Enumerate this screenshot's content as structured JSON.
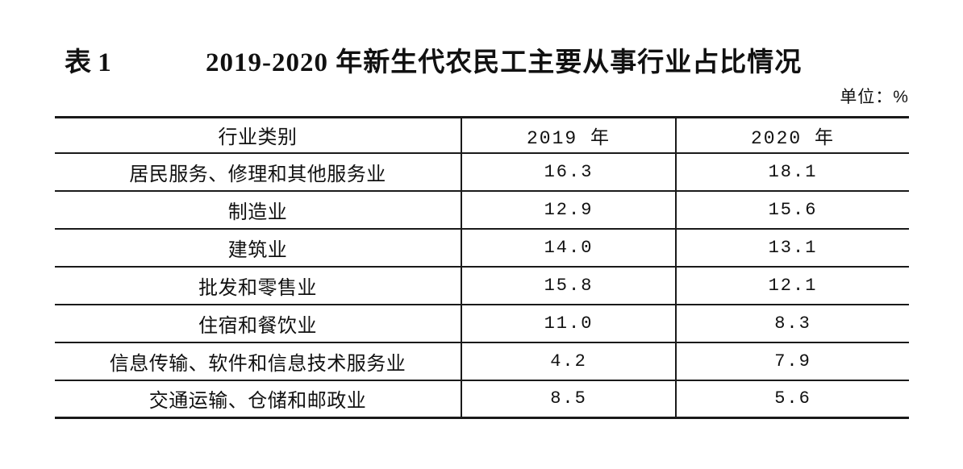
{
  "page": {
    "caption_label": "表 1",
    "title": "2019-2020 年新生代农民工主要从事行业占比情况",
    "unit_note": "单位：%"
  },
  "table": {
    "headers": [
      "行业类别",
      "2019 年",
      "2020 年"
    ],
    "rows": [
      {
        "industry": "居民服务、修理和其他服务业",
        "y2019": "16.3",
        "y2020": "18.1"
      },
      {
        "industry": "制造业",
        "y2019": "12.9",
        "y2020": "15.6"
      },
      {
        "industry": "建筑业",
        "y2019": "14.0",
        "y2020": "13.1"
      },
      {
        "industry": "批发和零售业",
        "y2019": "15.8",
        "y2020": "12.1"
      },
      {
        "industry": "住宿和餐饮业",
        "y2019": "11.0",
        "y2020": "8.3"
      },
      {
        "industry": "信息传输、软件和信息技术服务业",
        "y2019": "4.2",
        "y2020": "7.9"
      },
      {
        "industry": "交通运输、仓储和邮政业",
        "y2019": "8.5",
        "y2020": "5.6"
      }
    ]
  },
  "chart_data": {
    "type": "table",
    "title": "2019-2020年新生代农民工主要从事行业占比情况",
    "unit": "%",
    "columns": [
      "行业类别",
      "2019年",
      "2020年"
    ],
    "rows": [
      [
        "居民服务、修理和其他服务业",
        16.3,
        18.1
      ],
      [
        "制造业",
        12.9,
        15.6
      ],
      [
        "建筑业",
        14.0,
        13.1
      ],
      [
        "批发和零售业",
        15.8,
        12.1
      ],
      [
        "住宿和餐饮业",
        11.0,
        8.3
      ],
      [
        "信息传输、软件和信息技术服务业",
        4.2,
        7.9
      ],
      [
        "交通运输、仓储和邮政业",
        8.5,
        5.6
      ]
    ]
  }
}
